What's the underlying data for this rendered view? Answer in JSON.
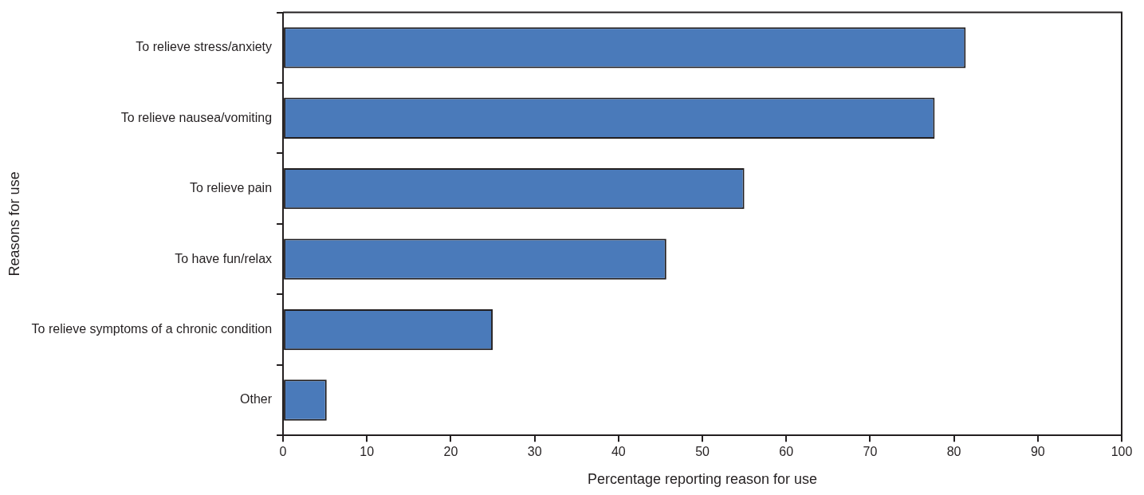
{
  "chart_data": {
    "type": "bar",
    "orientation": "horizontal",
    "xlabel": "Percentage reporting reason for use",
    "ylabel": "Reasons for use",
    "categories": [
      "To relieve stress/anxiety",
      "To relieve nausea/vomiting",
      "To relieve pain",
      "To have fun/relax",
      "To relieve symptoms of a chronic condition",
      "Other"
    ],
    "values": [
      81.4,
      77.7,
      55.0,
      45.7,
      25.0,
      5.2
    ],
    "color": "#4a7aba",
    "xlim": [
      0,
      100
    ],
    "xticks": [
      0,
      10,
      20,
      30,
      40,
      50,
      60,
      70,
      80,
      90,
      100
    ],
    "grid": false,
    "legend": false
  }
}
